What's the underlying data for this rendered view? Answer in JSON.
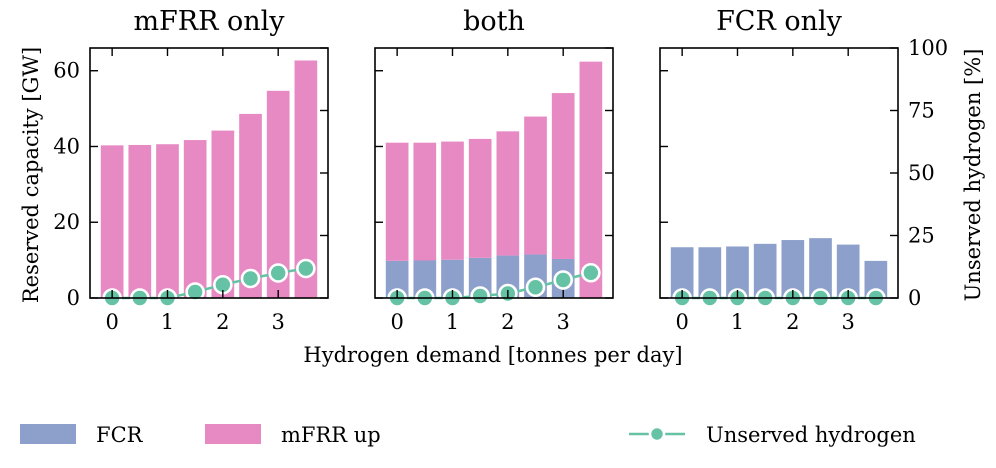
{
  "chart_data": {
    "type": "bar",
    "x": [
      0,
      0.5,
      1,
      1.5,
      2,
      2.5,
      3,
      3.5
    ],
    "xticks": [
      0,
      1,
      2,
      3
    ],
    "xlabel": "Hydrogen demand [tonnes per day]",
    "ylabel_left": "Reserved capacity [GW]",
    "ylabel_right": "Unserved hydrogen [%]",
    "ylim_left": [
      0,
      66
    ],
    "yticks_left": [
      0,
      20,
      40,
      60
    ],
    "ylim_right": [
      0,
      100
    ],
    "yticks_right": [
      0,
      25,
      50,
      75,
      100
    ],
    "colors": {
      "fcr": "#8da0cb",
      "mfrr": "#e78ac3",
      "unserved": "#66c2a5"
    },
    "legend": {
      "fcr": "FCR",
      "mfrr": "mFRR up",
      "unserved": "Unserved hydrogen"
    },
    "panels": [
      {
        "title": "mFRR only",
        "fcr": [
          0,
          0,
          0,
          0,
          0,
          0,
          0,
          0
        ],
        "mfrr": [
          40.3,
          40.4,
          40.6,
          41.7,
          44.2,
          48.6,
          54.7,
          62.7
        ],
        "unserved": [
          0,
          0,
          0,
          2.4,
          5.3,
          7.8,
          10.0,
          11.8
        ]
      },
      {
        "title": "both",
        "fcr": [
          9.8,
          9.9,
          10.1,
          10.6,
          11.2,
          11.5,
          10.3,
          0
        ],
        "mfrr": [
          31.2,
          31.1,
          31.2,
          31.4,
          32.8,
          36.4,
          43.8,
          62.4
        ],
        "unserved": [
          0,
          0,
          0,
          0.8,
          1.8,
          4.3,
          7.2,
          10.1
        ]
      },
      {
        "title": "FCR only",
        "fcr": [
          13.4,
          13.4,
          13.6,
          14.3,
          15.3,
          15.8,
          14.1,
          9.8
        ],
        "mfrr": [
          0,
          0,
          0,
          0,
          0,
          0,
          0,
          0
        ],
        "unserved": [
          0,
          0,
          0,
          0,
          0,
          0,
          0,
          0
        ]
      }
    ]
  }
}
